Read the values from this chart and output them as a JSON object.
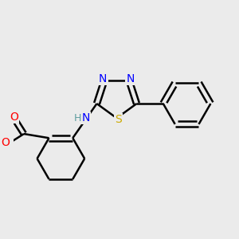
{
  "background_color": "#ebebeb",
  "bond_color": "#000000",
  "atom_colors": {
    "N": "#0000ff",
    "O": "#ff0000",
    "S": "#ccaa00",
    "C": "#000000",
    "H": "#5f9ea0"
  },
  "figsize": [
    3.0,
    3.0
  ],
  "dpi": 100
}
